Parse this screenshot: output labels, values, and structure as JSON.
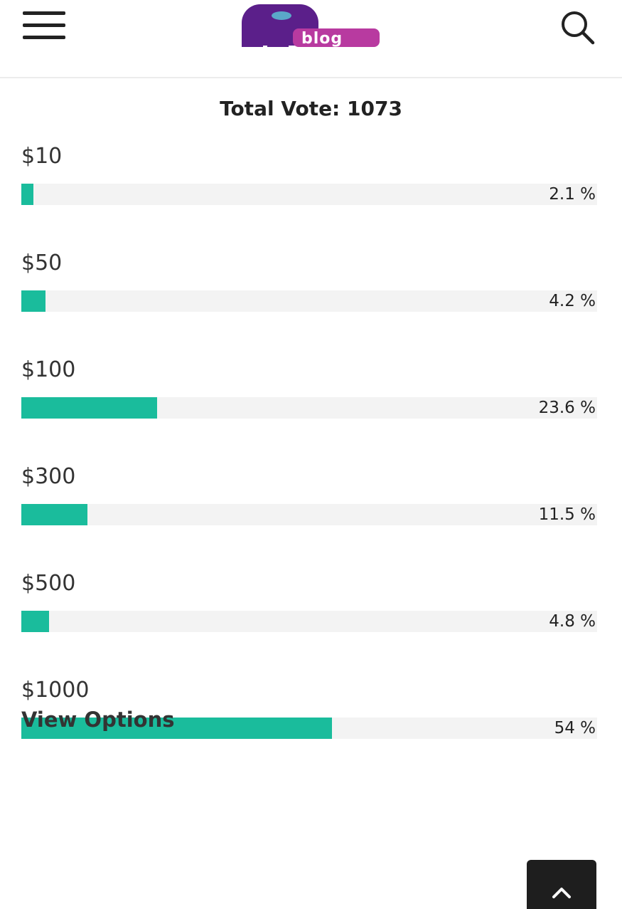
{
  "header": {
    "logo_text": "blog",
    "menu_icon": "hamburger-menu-icon",
    "search_icon": "search-icon"
  },
  "poll": {
    "total_label": "Total Vote: 1073",
    "options": [
      {
        "label": "$10",
        "percent": 2.1,
        "percent_label": "2.1 %"
      },
      {
        "label": "$50",
        "percent": 4.2,
        "percent_label": "4.2 %"
      },
      {
        "label": "$100",
        "percent": 23.6,
        "percent_label": "23.6 %"
      },
      {
        "label": "$300",
        "percent": 11.5,
        "percent_label": "11.5 %"
      },
      {
        "label": "$500",
        "percent": 4.8,
        "percent_label": "4.8 %"
      },
      {
        "label": "$1000",
        "percent": 54,
        "percent_label": "54 %"
      }
    ],
    "view_options_label": "View Options",
    "bar_color": "#1abc9c",
    "track_color": "#f3f3f3"
  },
  "scroll_top_icon": "chevron-up-icon"
}
